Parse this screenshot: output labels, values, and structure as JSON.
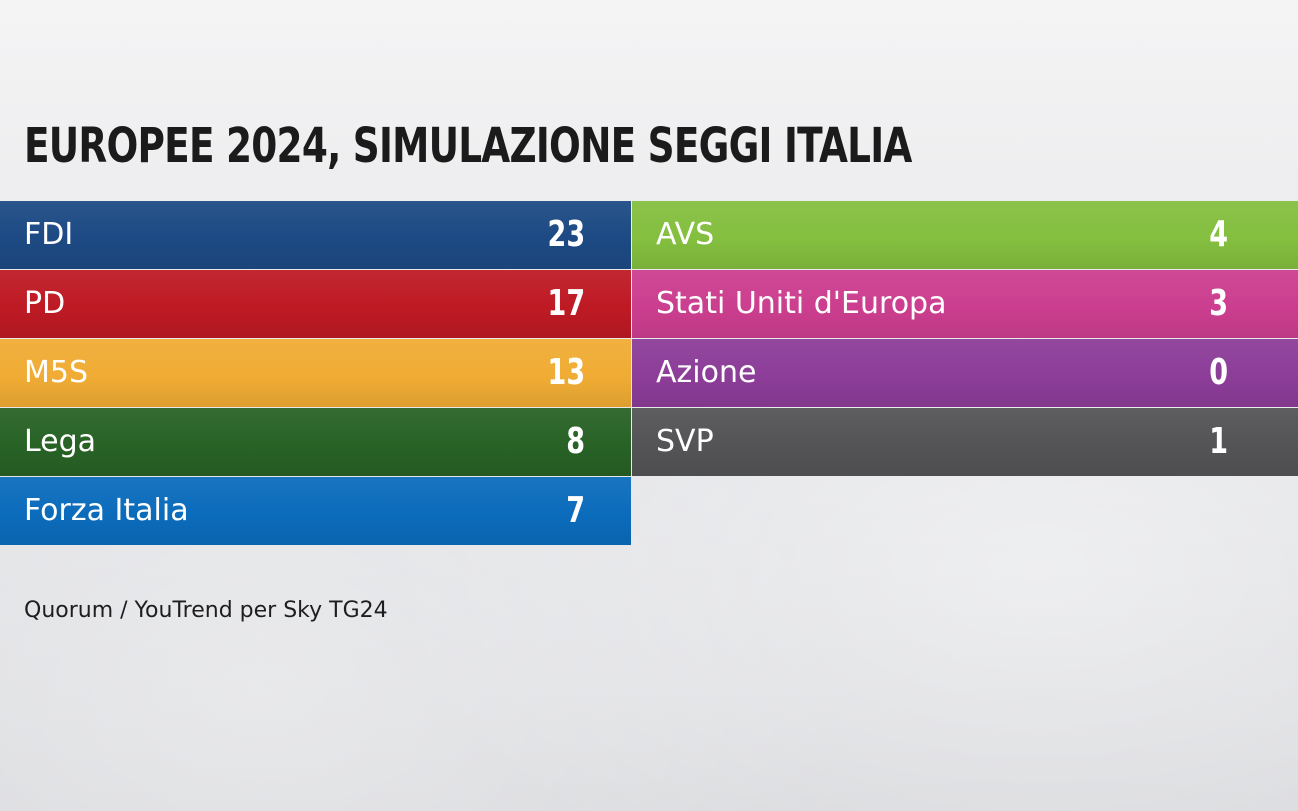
{
  "title": "EUROPEE 2024, SIMULAZIONE SEGGI ITALIA",
  "source": "Quorum / YouTrend per Sky TG24",
  "chart_data": {
    "type": "table",
    "title": "EUROPEE 2024, SIMULAZIONE SEGGI ITALIA",
    "columns": [
      {
        "rows": [
          {
            "party": "FDI",
            "seats": "23",
            "color": "#1d4a84"
          },
          {
            "party": "PD",
            "seats": "17",
            "color": "#be1a24"
          },
          {
            "party": "M5S",
            "seats": "13",
            "color": "#f0ac34"
          },
          {
            "party": "Lega",
            "seats": "8",
            "color": "#286225"
          },
          {
            "party": "Forza Italia",
            "seats": "7",
            "color": "#0b6cbc"
          }
        ]
      },
      {
        "rows": [
          {
            "party": "AVS",
            "seats": "4",
            "color": "#84bf3f"
          },
          {
            "party": "Stati Uniti d'Europa",
            "seats": "3",
            "color": "#cc3e8f"
          },
          {
            "party": "Azione",
            "seats": "0",
            "color": "#8c3d98"
          },
          {
            "party": "SVP",
            "seats": "1",
            "color": "#545456"
          }
        ]
      }
    ],
    "source": "Quorum / YouTrend per Sky TG24"
  }
}
